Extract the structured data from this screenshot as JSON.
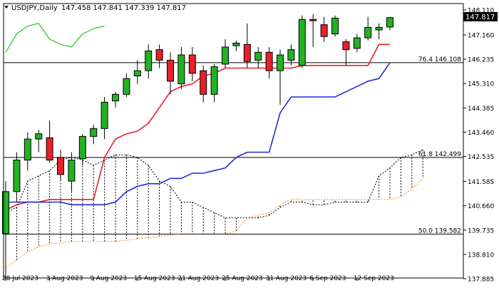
{
  "header": {
    "symbol": "USDJPY,Daily",
    "ohlc": "147.458 147.841 147.339 147.817"
  },
  "price_badge": "147.817",
  "colors": {
    "up_candle": "#22b322",
    "down_candle": "#e8202a",
    "tenkan": "#e8202a",
    "kijun": "#1f2ccf",
    "chikou": "#2bc22b",
    "span_a": "#000000",
    "span_b": "#f0902a",
    "cloud_hatch": "#000000",
    "fib_line": "#000000",
    "badge_bg": "#000000"
  },
  "chart_data": {
    "type": "candlestick",
    "ylim": [
      137.885,
      148.11
    ],
    "y_ticks": [
      "148.110",
      "147.160",
      "146.235",
      "145.310",
      "144.385",
      "143.460",
      "142.535",
      "141.585",
      "140.660",
      "139.735",
      "138.810",
      "137.885"
    ],
    "x_tick_labels": [
      {
        "i": 0,
        "label": "28 Jul 2023"
      },
      {
        "i": 4,
        "label": "3 Aug 2023"
      },
      {
        "i": 8,
        "label": "9 Aug 2023"
      },
      {
        "i": 12,
        "label": "15 Aug 2023"
      },
      {
        "i": 16,
        "label": "21 Aug 2023"
      },
      {
        "i": 20,
        "label": "25 Aug 2023"
      },
      {
        "i": 24,
        "label": "31 Aug 2023"
      },
      {
        "i": 28,
        "label": "6 Sep 2023"
      },
      {
        "i": 32,
        "label": "12 Sep 2023"
      }
    ],
    "candles": [
      {
        "o": 139.6,
        "h": 141.6,
        "l": 137.9,
        "c": 141.2
      },
      {
        "o": 141.2,
        "h": 142.7,
        "l": 140.8,
        "c": 142.4
      },
      {
        "o": 142.4,
        "h": 143.45,
        "l": 142.0,
        "c": 143.2
      },
      {
        "o": 143.2,
        "h": 143.55,
        "l": 142.7,
        "c": 143.4
      },
      {
        "o": 143.25,
        "h": 143.9,
        "l": 142.3,
        "c": 142.4
      },
      {
        "o": 142.5,
        "h": 142.8,
        "l": 141.6,
        "c": 141.85
      },
      {
        "o": 141.6,
        "h": 142.7,
        "l": 141.2,
        "c": 142.4
      },
      {
        "o": 142.45,
        "h": 143.4,
        "l": 142.2,
        "c": 143.3
      },
      {
        "o": 143.3,
        "h": 143.75,
        "l": 143.0,
        "c": 143.6
      },
      {
        "o": 143.6,
        "h": 144.8,
        "l": 143.2,
        "c": 144.6
      },
      {
        "o": 144.65,
        "h": 145.0,
        "l": 144.4,
        "c": 144.9
      },
      {
        "o": 144.9,
        "h": 145.7,
        "l": 144.8,
        "c": 145.5
      },
      {
        "o": 145.6,
        "h": 146.2,
        "l": 145.3,
        "c": 145.8
      },
      {
        "o": 145.8,
        "h": 146.8,
        "l": 145.5,
        "c": 146.55
      },
      {
        "o": 146.6,
        "h": 146.8,
        "l": 145.9,
        "c": 146.2
      },
      {
        "o": 146.2,
        "h": 146.5,
        "l": 144.9,
        "c": 145.4
      },
      {
        "o": 145.3,
        "h": 146.7,
        "l": 145.1,
        "c": 146.4
      },
      {
        "o": 146.4,
        "h": 146.7,
        "l": 145.4,
        "c": 145.7
      },
      {
        "o": 145.8,
        "h": 146.0,
        "l": 144.6,
        "c": 144.9
      },
      {
        "o": 144.9,
        "h": 146.05,
        "l": 144.6,
        "c": 145.95
      },
      {
        "o": 146.05,
        "h": 147.0,
        "l": 145.9,
        "c": 146.7
      },
      {
        "o": 146.75,
        "h": 146.95,
        "l": 146.55,
        "c": 146.85
      },
      {
        "o": 146.8,
        "h": 147.6,
        "l": 145.9,
        "c": 146.15
      },
      {
        "o": 146.2,
        "h": 146.7,
        "l": 145.9,
        "c": 146.5
      },
      {
        "o": 146.5,
        "h": 146.7,
        "l": 145.5,
        "c": 145.8
      },
      {
        "o": 145.8,
        "h": 146.6,
        "l": 144.5,
        "c": 146.4
      },
      {
        "o": 146.2,
        "h": 146.8,
        "l": 146.0,
        "c": 146.6
      },
      {
        "o": 146.0,
        "h": 147.9,
        "l": 145.9,
        "c": 147.75
      },
      {
        "o": 147.75,
        "h": 147.95,
        "l": 146.7,
        "c": 147.7
      },
      {
        "o": 147.55,
        "h": 147.85,
        "l": 146.9,
        "c": 147.1
      },
      {
        "o": 147.2,
        "h": 147.9,
        "l": 147.1,
        "c": 147.8
      },
      {
        "o": 146.9,
        "h": 147.0,
        "l": 146.0,
        "c": 146.6
      },
      {
        "o": 146.65,
        "h": 147.2,
        "l": 146.5,
        "c": 147.05
      },
      {
        "o": 147.05,
        "h": 147.85,
        "l": 146.95,
        "c": 147.45
      },
      {
        "o": 147.35,
        "h": 147.6,
        "l": 147.0,
        "c": 147.45
      },
      {
        "o": 147.46,
        "h": 147.84,
        "l": 147.34,
        "c": 147.82
      }
    ],
    "series": [
      {
        "key": "tenkan",
        "points": [
          [
            0,
            140.5
          ],
          [
            1,
            140.7
          ],
          [
            2,
            140.8
          ],
          [
            3,
            140.8
          ],
          [
            4,
            140.9
          ],
          [
            5,
            140.9
          ],
          [
            6,
            140.9
          ],
          [
            7,
            140.9
          ],
          [
            8,
            140.9
          ],
          [
            9,
            142.5
          ],
          [
            10,
            143.2
          ],
          [
            11,
            143.4
          ],
          [
            12,
            143.5
          ],
          [
            13,
            143.8
          ],
          [
            14,
            144.4
          ],
          [
            15,
            145.0
          ],
          [
            16,
            145.2
          ],
          [
            17,
            145.3
          ],
          [
            18,
            145.6
          ],
          [
            19,
            145.7
          ],
          [
            20,
            145.9
          ],
          [
            21,
            145.9
          ],
          [
            22,
            145.9
          ],
          [
            23,
            145.9
          ],
          [
            24,
            145.9
          ],
          [
            25,
            145.9
          ],
          [
            26,
            145.9
          ],
          [
            27,
            146.0
          ],
          [
            28,
            146.0
          ],
          [
            29,
            146.0
          ],
          [
            30,
            146.0
          ],
          [
            31,
            146.0
          ],
          [
            32,
            146.0
          ],
          [
            33,
            146.0
          ],
          [
            34,
            146.8
          ],
          [
            35,
            146.8
          ]
        ]
      },
      {
        "key": "kijun",
        "points": [
          [
            0,
            140.8
          ],
          [
            1,
            140.8
          ],
          [
            2,
            140.8
          ],
          [
            3,
            140.8
          ],
          [
            4,
            140.8
          ],
          [
            5,
            140.8
          ],
          [
            6,
            140.7
          ],
          [
            7,
            140.7
          ],
          [
            8,
            140.7
          ],
          [
            9,
            140.7
          ],
          [
            10,
            140.8
          ],
          [
            11,
            141.2
          ],
          [
            12,
            141.4
          ],
          [
            13,
            141.5
          ],
          [
            14,
            141.5
          ],
          [
            15,
            141.7
          ],
          [
            16,
            141.7
          ],
          [
            17,
            141.9
          ],
          [
            18,
            141.9
          ],
          [
            19,
            142.0
          ],
          [
            20,
            142.1
          ],
          [
            21,
            142.5
          ],
          [
            22,
            142.7
          ],
          [
            23,
            142.7
          ],
          [
            24,
            142.7
          ],
          [
            25,
            144.2
          ],
          [
            26,
            144.8
          ],
          [
            27,
            144.8
          ],
          [
            28,
            144.8
          ],
          [
            29,
            144.8
          ],
          [
            30,
            144.8
          ],
          [
            31,
            145.0
          ],
          [
            32,
            145.2
          ],
          [
            33,
            145.4
          ],
          [
            34,
            145.5
          ],
          [
            35,
            146.1
          ]
        ]
      },
      {
        "key": "span_a",
        "points": [
          [
            0,
            140.4
          ],
          [
            1,
            140.6
          ],
          [
            2,
            141.6
          ],
          [
            3,
            141.8
          ],
          [
            4,
            142.0
          ],
          [
            5,
            142.4
          ],
          [
            6,
            142.5
          ],
          [
            7,
            142.4
          ],
          [
            8,
            142.2
          ],
          [
            9,
            142.4
          ],
          [
            10,
            142.6
          ],
          [
            11,
            142.6
          ],
          [
            12,
            142.5
          ],
          [
            13,
            142.2
          ],
          [
            14,
            141.6
          ],
          [
            15,
            141.4
          ],
          [
            16,
            140.8
          ],
          [
            17,
            140.8
          ],
          [
            18,
            140.6
          ],
          [
            19,
            140.4
          ],
          [
            20,
            140.2
          ],
          [
            21,
            140.2
          ],
          [
            22,
            140.2
          ],
          [
            23,
            140.2
          ],
          [
            24,
            140.3
          ],
          [
            25,
            140.6
          ],
          [
            26,
            140.8
          ],
          [
            27,
            140.8
          ],
          [
            28,
            140.7
          ],
          [
            29,
            140.7
          ],
          [
            30,
            140.8
          ],
          [
            31,
            140.8
          ],
          [
            32,
            140.8
          ],
          [
            33,
            140.8
          ],
          [
            34,
            141.8
          ],
          [
            35,
            142.1
          ],
          [
            36,
            142.5
          ],
          [
            37,
            142.6
          ],
          [
            38,
            142.8
          ]
        ]
      },
      {
        "key": "span_b",
        "points": [
          [
            0,
            138.3
          ],
          [
            1,
            138.6
          ],
          [
            2,
            138.9
          ],
          [
            3,
            139.1
          ],
          [
            4,
            139.2
          ],
          [
            5,
            139.25
          ],
          [
            6,
            139.3
          ],
          [
            7,
            139.3
          ],
          [
            8,
            139.3
          ],
          [
            9,
            139.3
          ],
          [
            10,
            139.3
          ],
          [
            11,
            139.35
          ],
          [
            12,
            139.4
          ],
          [
            13,
            139.45
          ],
          [
            14,
            139.5
          ],
          [
            15,
            139.55
          ],
          [
            16,
            139.6
          ],
          [
            17,
            139.6
          ],
          [
            18,
            139.6
          ],
          [
            19,
            139.6
          ],
          [
            20,
            139.6
          ],
          [
            21,
            139.7
          ],
          [
            22,
            140.2
          ],
          [
            23,
            140.3
          ],
          [
            24,
            140.4
          ],
          [
            25,
            140.7
          ],
          [
            26,
            140.9
          ],
          [
            27,
            140.9
          ],
          [
            28,
            140.9
          ],
          [
            29,
            140.9
          ],
          [
            30,
            140.9
          ],
          [
            31,
            140.9
          ],
          [
            32,
            140.9
          ],
          [
            33,
            140.9
          ],
          [
            34,
            140.9
          ],
          [
            35,
            140.9
          ],
          [
            36,
            141.0
          ],
          [
            37,
            141.3
          ],
          [
            38,
            141.7
          ]
        ]
      },
      {
        "key": "chikou",
        "points": [
          [
            0,
            146.5
          ],
          [
            1,
            147.2
          ],
          [
            2,
            147.5
          ],
          [
            3,
            147.6
          ],
          [
            4,
            147.0
          ],
          [
            5,
            146.8
          ],
          [
            6,
            146.7
          ],
          [
            7,
            147.2
          ],
          [
            8,
            147.4
          ],
          [
            9,
            147.5
          ]
        ]
      }
    ],
    "hlines": [
      {
        "y": 146.108,
        "label": "76.4 146.108"
      },
      {
        "y": 142.499,
        "label": "61.8 142.499"
      },
      {
        "y": 139.582,
        "label": "50.0 139.582"
      }
    ]
  }
}
